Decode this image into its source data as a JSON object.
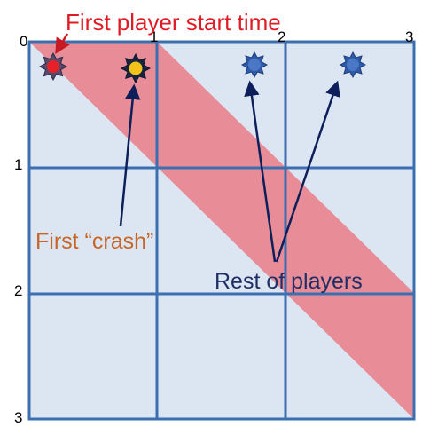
{
  "colors": {
    "cell_fill": "#dce6f2",
    "grid": "#3b6fb0",
    "band": "#e8858f",
    "title": "#e01b24",
    "crash_label": "#c8662a",
    "players_label": "#1f2f66",
    "arrow": "#0d1f5a",
    "start_player": "#e8202a",
    "crash_player": "#f2c21a",
    "other_player": "#4a78c6"
  },
  "axis": {
    "top": [
      "0",
      "1",
      "2",
      "3"
    ],
    "left": [
      "1",
      "2",
      "3"
    ]
  },
  "labels": {
    "title": "First player start time",
    "first_crash": "First “crash”",
    "rest": "Rest of players"
  },
  "icons": {
    "player": "sun-burst-icon"
  }
}
